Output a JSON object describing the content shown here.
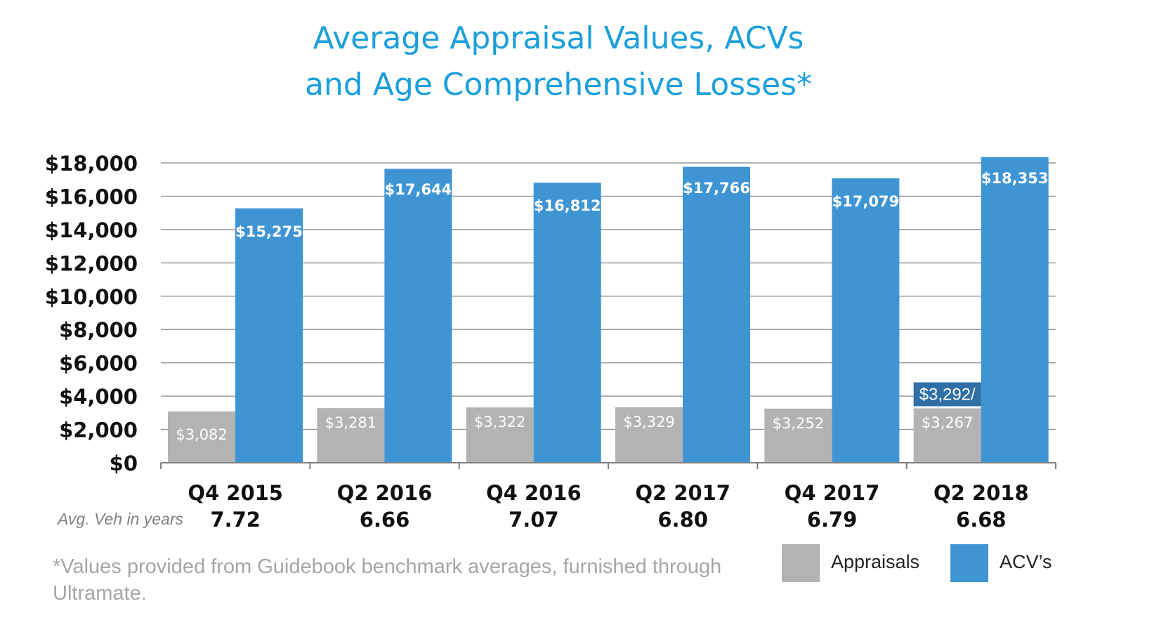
{
  "title_line1": "Average Appraisal Values, ACVs",
  "title_line2": "and Age Comprehensive Losses*",
  "footnote": "*Values provided from Guidebook benchmark averages, furnished through Ultramate.",
  "age_row_label": "Avg. Veh in years",
  "colors": {
    "title": "#1a9fdb",
    "appraisals": "#b3b3b3",
    "acvs": "#3f95d4",
    "highlight_box": "#2f6fa5",
    "gridline": "#999999"
  },
  "legend": {
    "appraisals": "Appraisals",
    "acvs": "ACV’s"
  },
  "chart_data": {
    "type": "bar",
    "categories": [
      "Q4 2015",
      "Q2 2016",
      "Q4 2016",
      "Q2 2017",
      "Q4 2017",
      "Q2 2018"
    ],
    "avg_vehicle_age": [
      "7.72",
      "6.66",
      "7.07",
      "6.80",
      "6.79",
      "6.68"
    ],
    "series": [
      {
        "name": "Appraisals",
        "values": [
          3082,
          3281,
          3322,
          3329,
          3252,
          3267
        ],
        "labels": [
          "$3,082",
          "$3,281",
          "$3,322",
          "$3,329",
          "$3,252",
          "$3,267"
        ]
      },
      {
        "name": "ACV’s",
        "values": [
          15275,
          17644,
          16812,
          17766,
          17079,
          18353
        ],
        "labels": [
          "$15,275",
          "$17,644",
          "$16,812",
          "$17,766",
          "$17,079",
          "$18,353"
        ]
      }
    ],
    "annotations": [
      {
        "category": "Q2 2018",
        "series": "Appraisals",
        "text": "$3,292/"
      }
    ],
    "yticks": [
      0,
      2000,
      4000,
      6000,
      8000,
      10000,
      12000,
      14000,
      16000,
      18000
    ],
    "ytick_labels": [
      "$0",
      "$2,000",
      "$4,000",
      "$6,000",
      "$8,000",
      "$10,000",
      "$12,000",
      "$14,000",
      "$16,000",
      "$18,000"
    ],
    "ylim": [
      0,
      18353
    ],
    "grid": true,
    "legend_position": "bottom-right"
  }
}
